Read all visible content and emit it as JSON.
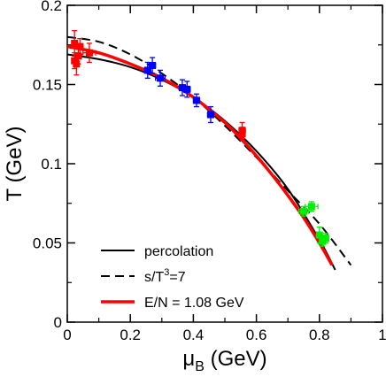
{
  "chart_data": {
    "type": "scatter",
    "title": "",
    "xlabel": {
      "main": "μ",
      "sub": "B",
      "unit": " (GeV)"
    },
    "ylabel": "T (GeV)",
    "xlim": [
      0,
      1
    ],
    "ylim": [
      0,
      0.2
    ],
    "x_ticks": [
      0,
      0.2,
      0.4,
      0.6,
      0.8,
      1
    ],
    "x_tick_labels": [
      "0",
      "0.2",
      "0.4",
      "0.6",
      "0.8",
      "1"
    ],
    "y_ticks": [
      0,
      0.05,
      0.1,
      0.15,
      0.2
    ],
    "y_tick_labels": [
      "0",
      "0.05",
      "0.1",
      "0.15",
      "0.2"
    ],
    "grid": false,
    "legend_position": "bottom-left",
    "lines": [
      {
        "name": "percolation",
        "style": "solid",
        "color": "#000000",
        "x": [
          0.0,
          0.1,
          0.2,
          0.3,
          0.4,
          0.5,
          0.6,
          0.7,
          0.8,
          0.85
        ],
        "y": [
          0.169,
          0.166,
          0.161,
          0.153,
          0.142,
          0.127,
          0.108,
          0.084,
          0.052,
          0.033
        ]
      },
      {
        "name": "s/T³=7",
        "legend_parts": {
          "pre": "s/T",
          "sup": "3",
          "post": "=7"
        },
        "style": "dashed",
        "color": "#000000",
        "x": [
          0.0,
          0.1,
          0.2,
          0.3,
          0.4,
          0.5,
          0.6,
          0.7,
          0.8,
          0.9
        ],
        "y": [
          0.18,
          0.177,
          0.169,
          0.157,
          0.142,
          0.124,
          0.104,
          0.083,
          0.062,
          0.036
        ]
      },
      {
        "name": "E/N = 1.08 GeV",
        "style": "solid-thick",
        "color": "#ff0000",
        "x": [
          0.0,
          0.1,
          0.2,
          0.3,
          0.4,
          0.5,
          0.55,
          0.6,
          0.65,
          0.7,
          0.75,
          0.8,
          0.84
        ],
        "y": [
          0.174,
          0.17,
          0.163,
          0.154,
          0.142,
          0.126,
          0.116,
          0.105,
          0.093,
          0.08,
          0.066,
          0.05,
          0.036
        ]
      }
    ],
    "points": [
      {
        "x": 0.023,
        "y": 0.176,
        "xerr": 0.005,
        "yerr": 0.008,
        "color": "#ff0000"
      },
      {
        "x": 0.023,
        "y": 0.165,
        "xerr": 0.005,
        "yerr": 0.005,
        "color": "#ff0000"
      },
      {
        "x": 0.029,
        "y": 0.163,
        "xerr": 0.005,
        "yerr": 0.007,
        "color": "#ff0000"
      },
      {
        "x": 0.035,
        "y": 0.168,
        "xerr": 0.01,
        "yerr": 0.005,
        "color": "#ff0000"
      },
      {
        "x": 0.04,
        "y": 0.174,
        "xerr": 0.01,
        "yerr": 0.005,
        "color": "#ff0000"
      },
      {
        "x": 0.07,
        "y": 0.17,
        "xerr": 0.02,
        "yerr": 0.006,
        "color": "#ff0000"
      },
      {
        "x": 0.255,
        "y": 0.159,
        "xerr": 0.01,
        "yerr": 0.005,
        "color": "#0000ff"
      },
      {
        "x": 0.27,
        "y": 0.162,
        "xerr": 0.01,
        "yerr": 0.005,
        "color": "#0000ff"
      },
      {
        "x": 0.295,
        "y": 0.154,
        "xerr": 0.015,
        "yerr": 0.005,
        "color": "#0000ff"
      },
      {
        "x": 0.365,
        "y": 0.148,
        "xerr": 0.01,
        "yerr": 0.005,
        "color": "#0000ff"
      },
      {
        "x": 0.38,
        "y": 0.147,
        "xerr": 0.01,
        "yerr": 0.005,
        "color": "#0000ff"
      },
      {
        "x": 0.41,
        "y": 0.14,
        "xerr": 0.01,
        "yerr": 0.004,
        "color": "#0000ff"
      },
      {
        "x": 0.455,
        "y": 0.131,
        "xerr": 0.01,
        "yerr": 0.005,
        "color": "#0000ff"
      },
      {
        "x": 0.555,
        "y": 0.121,
        "xerr": 0.01,
        "yerr": 0.005,
        "color": "#ff0000"
      },
      {
        "x": 0.555,
        "y": 0.119,
        "xerr": 0.008,
        "yerr": 0.004,
        "color": "#ff0000"
      },
      {
        "x": 0.75,
        "y": 0.07,
        "xerr": 0.015,
        "yerr": 0.003,
        "color": "#00ee00"
      },
      {
        "x": 0.775,
        "y": 0.073,
        "xerr": 0.02,
        "yerr": 0.003,
        "color": "#00ee00"
      },
      {
        "x": 0.8,
        "y": 0.055,
        "xerr": 0.005,
        "yerr": 0.005,
        "color": "#00ee00"
      },
      {
        "x": 0.81,
        "y": 0.051,
        "xerr": 0.008,
        "yerr": 0.003,
        "color": "#00ee00"
      },
      {
        "x": 0.82,
        "y": 0.053,
        "xerr": 0.008,
        "yerr": 0.003,
        "color": "#00ee00"
      }
    ]
  }
}
